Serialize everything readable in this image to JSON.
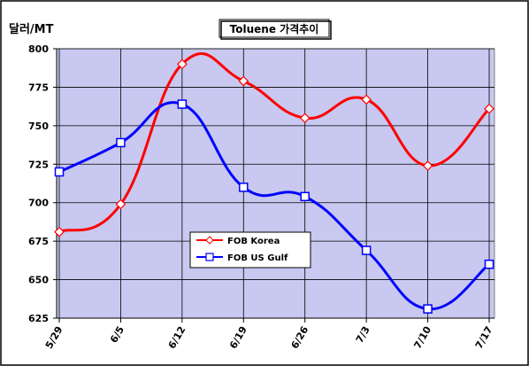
{
  "chart_data": {
    "type": "line",
    "title": "Toluene 가격추이",
    "unit_label": "달러/MT",
    "categories": [
      "5/29",
      "6/5",
      "6/12",
      "6/19",
      "6/26",
      "7/3",
      "7/10",
      "7/17"
    ],
    "ylim": [
      625,
      800
    ],
    "yticks": [
      625,
      650,
      675,
      700,
      725,
      750,
      775,
      800
    ],
    "grid": true,
    "legend_position": "center-left",
    "series": [
      {
        "name": "FOB Korea",
        "color": "#ff0000",
        "marker": "diamond",
        "values": [
          681,
          699,
          790,
          779,
          755,
          767,
          724,
          761
        ]
      },
      {
        "name": "FOB US Gulf",
        "color": "#0000ff",
        "marker": "square",
        "values": [
          720,
          739,
          764,
          710,
          704,
          669,
          631,
          660
        ]
      }
    ],
    "plot_background": "#c8c8f0"
  }
}
